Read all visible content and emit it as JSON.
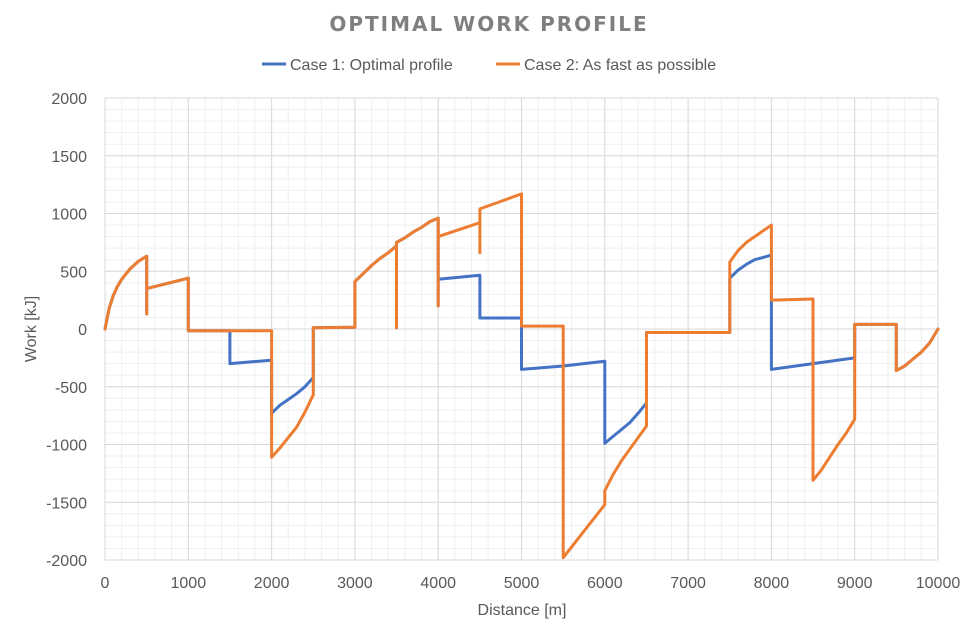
{
  "chart_data": {
    "type": "line",
    "title": "OPTIMAL WORK PROFILE",
    "xlabel": "Distance [m]",
    "ylabel": "Work [kJ]",
    "xlim": [
      0,
      10000
    ],
    "ylim": [
      -2000,
      2000
    ],
    "xticks": [
      0,
      1000,
      2000,
      3000,
      4000,
      5000,
      6000,
      7000,
      8000,
      9000,
      10000
    ],
    "yticks": [
      -2000,
      -1500,
      -1000,
      -500,
      0,
      500,
      1000,
      1500,
      2000
    ],
    "grid": true,
    "legend_position": "top",
    "series": [
      {
        "name": "Case 1: Optimal profile",
        "color": "#4472C4",
        "points": [
          [
            0,
            0
          ],
          [
            50,
            180
          ],
          [
            100,
            290
          ],
          [
            150,
            370
          ],
          [
            200,
            430
          ],
          [
            300,
            520
          ],
          [
            400,
            585
          ],
          [
            500,
            630
          ],
          [
            500,
            130
          ],
          [
            500,
            350
          ],
          [
            1000,
            440
          ],
          [
            1000,
            80
          ],
          [
            1000,
            -15
          ],
          [
            1500,
            -15
          ],
          [
            1500,
            -300
          ],
          [
            2000,
            -270
          ],
          [
            2000,
            -730
          ],
          [
            2100,
            -660
          ],
          [
            2200,
            -610
          ],
          [
            2300,
            -560
          ],
          [
            2400,
            -500
          ],
          [
            2500,
            -420
          ],
          [
            2500,
            10
          ],
          [
            3000,
            15
          ],
          [
            3000,
            410
          ],
          [
            3100,
            480
          ],
          [
            3200,
            550
          ],
          [
            3300,
            610
          ],
          [
            3400,
            660
          ],
          [
            3500,
            720
          ],
          [
            3500,
            10
          ],
          [
            3500,
            750
          ],
          [
            3600,
            790
          ],
          [
            3700,
            840
          ],
          [
            3800,
            880
          ],
          [
            3900,
            930
          ],
          [
            4000,
            960
          ],
          [
            4000,
            200
          ],
          [
            4000,
            430
          ],
          [
            4500,
            465
          ],
          [
            4500,
            95
          ],
          [
            5000,
            95
          ],
          [
            5000,
            -350
          ],
          [
            5500,
            -320
          ],
          [
            6000,
            -280
          ],
          [
            6000,
            -990
          ],
          [
            6100,
            -930
          ],
          [
            6200,
            -870
          ],
          [
            6300,
            -810
          ],
          [
            6400,
            -730
          ],
          [
            6500,
            -640
          ],
          [
            6500,
            -30
          ],
          [
            7500,
            -30
          ],
          [
            7500,
            440
          ],
          [
            7600,
            510
          ],
          [
            7700,
            560
          ],
          [
            7800,
            600
          ],
          [
            7900,
            620
          ],
          [
            8000,
            640
          ],
          [
            8000,
            -350
          ],
          [
            8500,
            -300
          ],
          [
            9000,
            -250
          ],
          [
            9000,
            40
          ],
          [
            9500,
            40
          ],
          [
            9500,
            -360
          ],
          [
            9600,
            -320
          ],
          [
            9700,
            -260
          ],
          [
            9800,
            -200
          ],
          [
            9900,
            -120
          ],
          [
            10000,
            0
          ]
        ]
      },
      {
        "name": "Case 2: As fast as possible",
        "color": "#ED7D31",
        "points": [
          [
            0,
            0
          ],
          [
            50,
            180
          ],
          [
            100,
            290
          ],
          [
            150,
            370
          ],
          [
            200,
            430
          ],
          [
            300,
            520
          ],
          [
            400,
            585
          ],
          [
            500,
            630
          ],
          [
            500,
            130
          ],
          [
            500,
            350
          ],
          [
            1000,
            440
          ],
          [
            1000,
            80
          ],
          [
            1000,
            -15
          ],
          [
            2000,
            -15
          ],
          [
            2000,
            -1110
          ],
          [
            2100,
            -1030
          ],
          [
            2200,
            -940
          ],
          [
            2300,
            -850
          ],
          [
            2400,
            -720
          ],
          [
            2500,
            -570
          ],
          [
            2500,
            10
          ],
          [
            3000,
            15
          ],
          [
            3000,
            410
          ],
          [
            3100,
            480
          ],
          [
            3200,
            550
          ],
          [
            3300,
            610
          ],
          [
            3400,
            660
          ],
          [
            3500,
            720
          ],
          [
            3500,
            10
          ],
          [
            3500,
            750
          ],
          [
            3600,
            790
          ],
          [
            3700,
            840
          ],
          [
            3800,
            880
          ],
          [
            3900,
            930
          ],
          [
            4000,
            960
          ],
          [
            4000,
            200
          ],
          [
            4000,
            800
          ],
          [
            4500,
            920
          ],
          [
            4500,
            660
          ],
          [
            4500,
            1040
          ],
          [
            5000,
            1170
          ],
          [
            5000,
            25
          ],
          [
            5500,
            25
          ],
          [
            5500,
            -1980
          ],
          [
            6000,
            -1520
          ],
          [
            6000,
            -1400
          ],
          [
            6100,
            -1260
          ],
          [
            6200,
            -1140
          ],
          [
            6300,
            -1040
          ],
          [
            6400,
            -940
          ],
          [
            6500,
            -840
          ],
          [
            6500,
            -30
          ],
          [
            7500,
            -30
          ],
          [
            7500,
            580
          ],
          [
            7600,
            680
          ],
          [
            7700,
            750
          ],
          [
            7800,
            800
          ],
          [
            7900,
            850
          ],
          [
            8000,
            900
          ],
          [
            8000,
            250
          ],
          [
            8500,
            260
          ],
          [
            8500,
            -1310
          ],
          [
            8600,
            -1220
          ],
          [
            8700,
            -1110
          ],
          [
            8800,
            -1000
          ],
          [
            8900,
            -900
          ],
          [
            9000,
            -780
          ],
          [
            9000,
            40
          ],
          [
            9500,
            40
          ],
          [
            9500,
            -360
          ],
          [
            9600,
            -320
          ],
          [
            9700,
            -260
          ],
          [
            9800,
            -200
          ],
          [
            9900,
            -120
          ],
          [
            10000,
            0
          ]
        ]
      }
    ]
  }
}
